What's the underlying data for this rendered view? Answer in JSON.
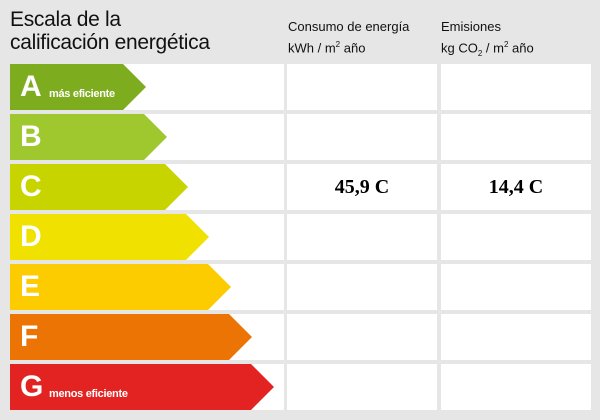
{
  "title_line1": "Escala de la",
  "title_line2": "calificación energética",
  "columns": {
    "energy": {
      "line1": "Consumo de energía",
      "unit_pre": "kWh / m",
      "unit_sup": "2",
      "unit_post": " año"
    },
    "emissions": {
      "line1": "Emisiones",
      "unit_pre": "kg CO",
      "unit_sub": "2",
      "unit_mid": " / m",
      "unit_sup": "2",
      "unit_post": " año"
    }
  },
  "ratings": [
    {
      "letter": "A",
      "label": "más eficiente",
      "color": "#7dac1f",
      "energy": "",
      "emissions": ""
    },
    {
      "letter": "B",
      "label": "",
      "color": "#9ec82d",
      "energy": "",
      "emissions": ""
    },
    {
      "letter": "C",
      "label": "",
      "color": "#c8d400",
      "energy": "45,9 C",
      "emissions": "14,4 C"
    },
    {
      "letter": "D",
      "label": "",
      "color": "#f0e100",
      "energy": "",
      "emissions": ""
    },
    {
      "letter": "E",
      "label": "",
      "color": "#fccb00",
      "energy": "",
      "emissions": ""
    },
    {
      "letter": "F",
      "label": "",
      "color": "#ec7404",
      "energy": "",
      "emissions": ""
    },
    {
      "letter": "G",
      "label": "menos eficiente",
      "color": "#e32222",
      "energy": "",
      "emissions": ""
    }
  ]
}
